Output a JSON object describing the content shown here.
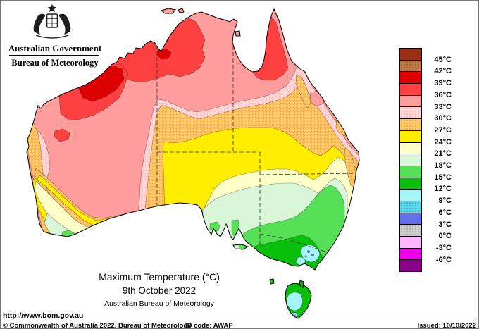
{
  "header": {
    "gov_title": "Australian Government",
    "bureau_title": "Bureau of Meteorology"
  },
  "titles": {
    "main": "Maximum Temperature (°C)",
    "date": "9th October 2022",
    "org": "Australian Bureau of Meteorology"
  },
  "url": "http://www.bom.gov.au",
  "footer": {
    "copyright": "© Commonwealth of Australia 2022, Bureau of Meteorology",
    "id_code": "ID code: AWAP",
    "issued": "Issued: 10/10/2022"
  },
  "legend": {
    "items": [
      {
        "label": "45°C",
        "color": "#993016",
        "dots": ""
      },
      {
        "label": "42°C",
        "color": "#B5804A",
        "dots": "#C03010"
      },
      {
        "label": "39°C",
        "color": "#DD0000",
        "dots": ""
      },
      {
        "label": "36°C",
        "color": "#FF4040",
        "dots": ""
      },
      {
        "label": "33°C",
        "color": "#FF9D9D",
        "dots": ""
      },
      {
        "label": "30°C",
        "color": "#FFD9D9",
        "dots": "#FF9D9D"
      },
      {
        "label": "27°C",
        "color": "#FDC76B",
        "dots": "#E89A30"
      },
      {
        "label": "24°C",
        "color": "#FFED00",
        "dots": ""
      },
      {
        "label": "21°C",
        "color": "#FFFFC8",
        "dots": ""
      },
      {
        "label": "18°C",
        "color": "#D9F6D9",
        "dots": ""
      },
      {
        "label": "15°C",
        "color": "#55E055",
        "dots": ""
      },
      {
        "label": "12°C",
        "color": "#0ABF0A",
        "dots": ""
      },
      {
        "label": "9°C",
        "color": "#A5F7F7",
        "dots": ""
      },
      {
        "label": "6°C",
        "color": "#58D8E8",
        "dots": "#2090C0"
      },
      {
        "label": "3°C",
        "color": "#6070EE",
        "dots": ""
      },
      {
        "label": "0°C",
        "color": "#CDCDCD",
        "dots": "#999999"
      },
      {
        "label": "-3°C",
        "color": "#FFB5FF",
        "dots": ""
      },
      {
        "label": "-6°C",
        "color": "#EE00EE",
        "dots": ""
      },
      {
        "label": "",
        "color": "#8B008B",
        "dots": ""
      }
    ]
  },
  "map": {
    "sea_color": "#FFFFFF",
    "coast_color": "#000000",
    "border_color": "#333333",
    "bands": {
      "b39_42": "#DD0000",
      "b36_39": "#FF4040",
      "b33_36": "#FF9D9D",
      "b30_33": "#FFD9D9",
      "b30_33_dot": "#FFA8A8",
      "b27_30": "#FDC76B",
      "b27_30_dot": "#E89A30",
      "b24_27": "#FFED00",
      "b21_24": "#FFFFC8",
      "b18_21": "#D9F6D9",
      "b15_18": "#55E055",
      "b12_15": "#0ABF0A",
      "b9_12": "#A5F7F7",
      "b6_9": "#58D8E8",
      "b3_6": "#6070EE"
    }
  }
}
